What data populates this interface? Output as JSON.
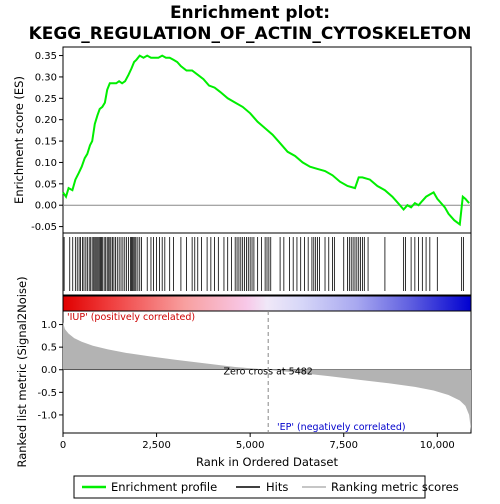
{
  "title_line1": "Enrichment plot:",
  "title_line2": "KEGG_REGULATION_OF_ACTIN_CYTOSKELETON",
  "colors": {
    "es_line": "#00ee00",
    "hits": "#000000",
    "zero_cross": "#888888",
    "metric_fill": "#b3b3b3",
    "pos_text": "#cc0000",
    "neg_text": "#0000cc"
  },
  "legend": {
    "es": "Enrichment profile",
    "hits": "Hits",
    "metric": "Ranking metric scores"
  },
  "chart_data": [
    {
      "panel": "enrichment",
      "type": "line",
      "ylabel": "Enrichment score (ES)",
      "xlim": [
        0,
        10900
      ],
      "ylim": [
        -0.065,
        0.37
      ],
      "yticks": [
        -0.05,
        0.0,
        0.05,
        0.1,
        0.15,
        0.2,
        0.25,
        0.3,
        0.35
      ],
      "ytick_labels": [
        "-0.05",
        "0.00",
        "0.05",
        "0.10",
        "0.15",
        "0.20",
        "0.25",
        "0.30",
        "0.35"
      ],
      "series": [
        {
          "x": [
            0,
            80,
            150,
            250,
            330,
            420,
            500,
            580,
            650,
            720,
            780,
            850,
            920,
            980,
            1050,
            1120,
            1180,
            1250,
            1330,
            1420,
            1500,
            1580,
            1660,
            1750,
            1830,
            1900,
            1960,
            2050,
            2150,
            2250,
            2350,
            2450,
            2550,
            2650,
            2750,
            2850,
            2950,
            3050,
            3150,
            3300,
            3450,
            3600,
            3750,
            3900,
            4050,
            4200,
            4400,
            4600,
            4800,
            5000,
            5200,
            5400,
            5600,
            5800,
            6000,
            6200,
            6400,
            6600,
            6800,
            7000,
            7200,
            7400,
            7600,
            7800,
            7900,
            8000,
            8200,
            8400,
            8600,
            8800,
            9000,
            9100,
            9200,
            9300,
            9400,
            9500,
            9600,
            9700,
            9800,
            9900,
            10000,
            10100,
            10200,
            10300,
            10450,
            10600,
            10680,
            10750,
            10850
          ],
          "y": [
            0.03,
            0.02,
            0.04,
            0.035,
            0.06,
            0.075,
            0.09,
            0.11,
            0.12,
            0.14,
            0.15,
            0.19,
            0.21,
            0.225,
            0.23,
            0.24,
            0.27,
            0.285,
            0.285,
            0.285,
            0.29,
            0.285,
            0.29,
            0.305,
            0.32,
            0.335,
            0.34,
            0.35,
            0.345,
            0.35,
            0.345,
            0.345,
            0.345,
            0.35,
            0.345,
            0.345,
            0.34,
            0.335,
            0.325,
            0.315,
            0.315,
            0.305,
            0.295,
            0.28,
            0.275,
            0.265,
            0.25,
            0.24,
            0.23,
            0.215,
            0.195,
            0.18,
            0.165,
            0.145,
            0.125,
            0.115,
            0.1,
            0.09,
            0.085,
            0.08,
            0.07,
            0.055,
            0.045,
            0.04,
            0.065,
            0.065,
            0.06,
            0.045,
            0.035,
            0.02,
            0.0,
            -0.01,
            0.0,
            -0.005,
            0.005,
            0.0,
            0.01,
            0.02,
            0.025,
            0.03,
            0.015,
            0.005,
            -0.005,
            -0.02,
            -0.035,
            -0.045,
            0.02,
            0.015,
            0.005
          ]
        }
      ]
    },
    {
      "panel": "hits",
      "type": "scatter",
      "x": [
        30,
        180,
        260,
        330,
        380,
        430,
        470,
        520,
        560,
        610,
        650,
        700,
        740,
        780,
        820,
        850,
        880,
        910,
        940,
        970,
        1000,
        1030,
        1060,
        1100,
        1140,
        1180,
        1210,
        1250,
        1280,
        1320,
        1360,
        1400,
        1450,
        1500,
        1550,
        1600,
        1650,
        1700,
        1750,
        1800,
        1830,
        1860,
        1890,
        1920,
        1950,
        2000,
        2050,
        2100,
        2250,
        2350,
        2420,
        2500,
        2580,
        2650,
        2720,
        2850,
        2950,
        3150,
        3300,
        3450,
        3520,
        3600,
        3700,
        3850,
        3950,
        4050,
        4150,
        4300,
        4400,
        4500,
        4600,
        4650,
        4700,
        4750,
        4800,
        4850,
        4900,
        4950,
        5000,
        5050,
        5100,
        5200,
        5300,
        5400,
        5450,
        5500,
        5550,
        5800,
        5900,
        6050,
        6150,
        6250,
        6350,
        6450,
        6550,
        6650,
        6700,
        6750,
        6800,
        6850,
        7000,
        7100,
        7200,
        7250,
        7500,
        7600,
        7650,
        7700,
        7750,
        7800,
        7850,
        7900,
        7950,
        8000,
        8050,
        8150,
        8600,
        9100,
        9150,
        9300,
        9400,
        9500,
        9600,
        9700,
        9800,
        10000,
        10650,
        10700
      ]
    },
    {
      "panel": "ranking",
      "type": "area",
      "xlabel": "Rank in Ordered Dataset",
      "ylabel": "Ranked list metric (Signal2Noise)",
      "xlim": [
        0,
        10900
      ],
      "ylim": [
        -1.4,
        1.3
      ],
      "xticks": [
        0,
        2500,
        5000,
        7500,
        10000
      ],
      "xtick_labels": [
        "0",
        "2,500",
        "5,000",
        "7,500",
        "10,000"
      ],
      "yticks": [
        -1.0,
        -0.5,
        0.0,
        0.5,
        1.0
      ],
      "ytick_labels": [
        "-1.0",
        "-0.5",
        "0.0",
        "0.5",
        "1.0"
      ],
      "x": [
        0,
        50,
        150,
        300,
        500,
        800,
        1200,
        1700,
        2300,
        3000,
        3800,
        4600,
        5482,
        6300,
        7100,
        7900,
        8700,
        9400,
        9900,
        10300,
        10600,
        10750,
        10850,
        10900
      ],
      "y": [
        1.05,
        0.9,
        0.8,
        0.7,
        0.62,
        0.53,
        0.45,
        0.37,
        0.3,
        0.22,
        0.14,
        0.06,
        0.0,
        -0.07,
        -0.14,
        -0.22,
        -0.3,
        -0.38,
        -0.46,
        -0.56,
        -0.68,
        -0.8,
        -1.0,
        -1.35
      ],
      "zero_cross_rank": 5482,
      "zero_cross_label": "Zero cross at 5482",
      "pos_label": "'IUP' (positively correlated)",
      "neg_label": "'EP' (negatively correlated)"
    }
  ]
}
